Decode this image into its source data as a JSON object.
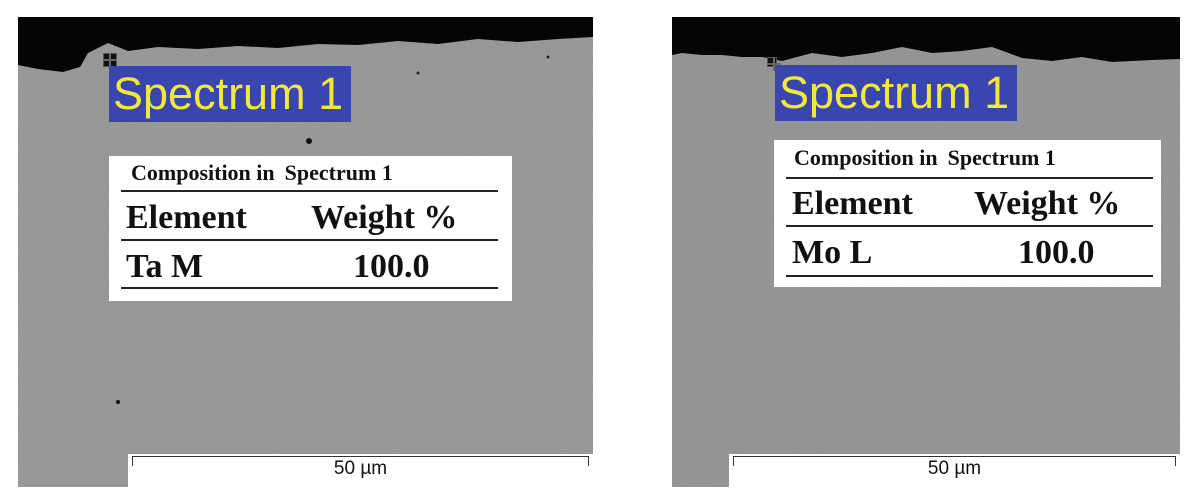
{
  "panels": [
    {
      "spectrum_label": "Spectrum 1",
      "composition": {
        "title_part1": "Composition in",
        "title_part2": "Spectrum 1",
        "col_element": "Element",
        "col_weight": "Weight %",
        "element": "Ta M",
        "weight": "100.0"
      },
      "scale_bar": "50 µm"
    },
    {
      "spectrum_label": "Spectrum 1",
      "composition": {
        "title_part1": "Composition in",
        "title_part2": "Spectrum 1",
        "col_element": "Element",
        "col_weight": "Weight %",
        "element": "Mo L",
        "weight": "100.0"
      },
      "scale_bar": "50 µm"
    }
  ],
  "colors": {
    "label_bg": "#3a46b0",
    "label_text": "#f2e83a",
    "surface_dark": "#050505",
    "sample_gray": "#8e8e8e"
  }
}
